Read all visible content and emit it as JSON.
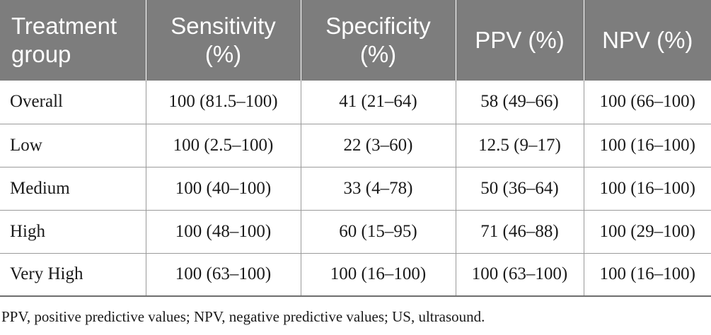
{
  "table": {
    "headers": [
      {
        "line1": "Treatment",
        "line2": "group"
      },
      {
        "line1": "Sensitivity",
        "line2": "(%)"
      },
      {
        "line1": "Specificity",
        "line2": "(%)"
      },
      {
        "line1": "PPV (%)",
        "line2": ""
      },
      {
        "line1": "NPV (%)",
        "line2": ""
      }
    ],
    "rows": [
      [
        "Overall",
        "100 (81.5–100)",
        "41 (21–64)",
        "58 (49–66)",
        "100 (66–100)"
      ],
      [
        "Low",
        "100 (2.5–100)",
        "22 (3–60)",
        "12.5 (9–17)",
        "100 (16–100)"
      ],
      [
        "Medium",
        "100 (40–100)",
        "33 (4–78)",
        "50 (36–64)",
        "100 (16–100)"
      ],
      [
        "High",
        "100 (48–100)",
        "60 (15–95)",
        "71 (46–88)",
        "100 (29–100)"
      ],
      [
        "Very High",
        "100 (63–100)",
        "100 (16–100)",
        "100 (63–100)",
        "100 (16–100)"
      ]
    ]
  },
  "footnote": "PPV, positive predictive values; NPV, negative predictive values; US, ultrasound.",
  "colors": {
    "header_bg": "#7d7d7d",
    "header_text": "#ffffff",
    "rule": "#9a9a9a"
  }
}
